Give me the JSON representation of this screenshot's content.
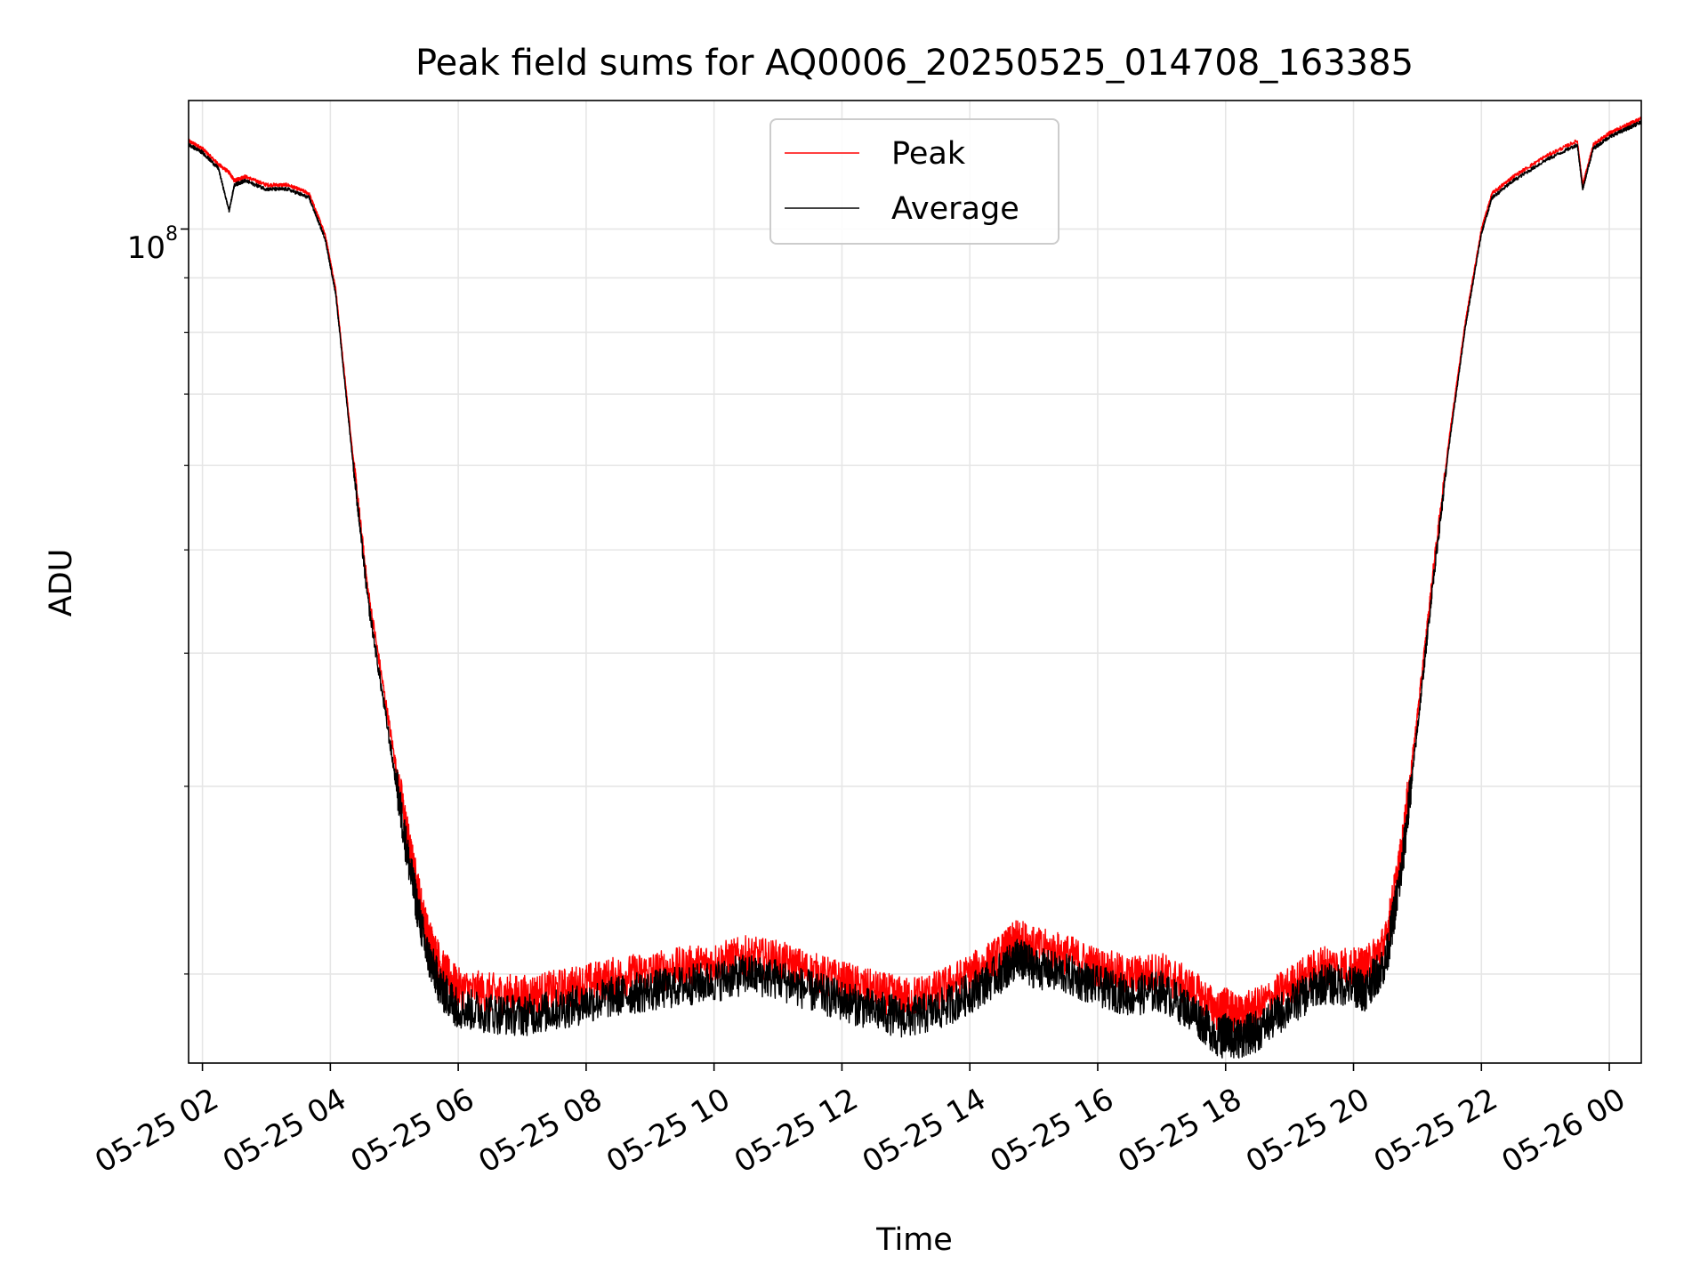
{
  "chart_data": {
    "type": "line",
    "title": "Peak field sums for AQ0006_20250525_014708_163385",
    "xlabel": "Time",
    "ylabel": "ADU",
    "x_ticks": [
      "05-25 02",
      "05-25 04",
      "05-25 06",
      "05-25 08",
      "05-25 10",
      "05-25 12",
      "05-25 14",
      "05-25 16",
      "05-25 18",
      "05-25 20",
      "05-25 22",
      "05-26 00"
    ],
    "y_tick_label_base": "10",
    "y_tick_label_exp": "8",
    "y_scale": "log",
    "xlim": [
      "2025-05-25 01:47",
      "2025-05-26 00:30"
    ],
    "ylim": [
      16500000,
      132000000
    ],
    "grid": true,
    "legend_position": "upper center",
    "colors": {
      "Peak": "#ff0000",
      "Average": "#000000"
    },
    "series": [
      {
        "name": "Peak",
        "x": [
          "2025-05-25 01:47",
          "2025-05-25 02:00",
          "2025-05-25 02:15",
          "2025-05-25 02:25",
          "2025-05-25 02:30",
          "2025-05-25 02:40",
          "2025-05-25 03:00",
          "2025-05-25 03:20",
          "2025-05-25 03:40",
          "2025-05-25 03:55",
          "2025-05-25 04:05",
          "2025-05-25 04:20",
          "2025-05-25 04:35",
          "2025-05-25 05:00",
          "2025-05-25 05:15",
          "2025-05-25 05:30",
          "2025-05-25 05:45",
          "2025-05-25 06:00",
          "2025-05-25 06:30",
          "2025-05-25 07:00",
          "2025-05-25 07:30",
          "2025-05-25 08:00",
          "2025-05-25 08:30",
          "2025-05-25 09:00",
          "2025-05-25 09:30",
          "2025-05-25 10:00",
          "2025-05-25 10:30",
          "2025-05-25 11:00",
          "2025-05-25 11:30",
          "2025-05-25 12:00",
          "2025-05-25 12:30",
          "2025-05-25 13:00",
          "2025-05-25 13:30",
          "2025-05-25 14:00",
          "2025-05-25 14:30",
          "2025-05-25 14:45",
          "2025-05-25 15:00",
          "2025-05-25 15:30",
          "2025-05-25 16:00",
          "2025-05-25 16:30",
          "2025-05-25 17:00",
          "2025-05-25 17:30",
          "2025-05-25 17:55",
          "2025-05-25 18:00",
          "2025-05-25 18:10",
          "2025-05-25 18:30",
          "2025-05-25 19:00",
          "2025-05-25 19:30",
          "2025-05-25 20:00",
          "2025-05-25 20:10",
          "2025-05-25 20:30",
          "2025-05-25 20:45",
          "2025-05-25 21:00",
          "2025-05-25 21:15",
          "2025-05-25 21:30",
          "2025-05-25 21:45",
          "2025-05-25 22:00",
          "2025-05-25 22:10",
          "2025-05-25 22:30",
          "2025-05-25 23:00",
          "2025-05-25 23:30",
          "2025-05-25 23:35",
          "2025-05-25 23:45",
          "2025-05-26 00:00",
          "2025-05-26 00:15",
          "2025-05-26 00:30"
        ],
        "y": [
          121000000,
          119000000,
          115000000,
          113000000,
          111000000,
          112000000,
          110000000,
          110000000,
          108000000,
          99000000,
          88000000,
          63000000,
          46000000,
          32000000,
          26000000,
          22000000,
          20200000,
          19400000,
          19200000,
          19100000,
          19300000,
          19600000,
          19900000,
          20100000,
          20300000,
          20500000,
          20800000,
          20600000,
          20100000,
          19700000,
          19300000,
          19000000,
          19300000,
          20000000,
          20900000,
          21600000,
          21200000,
          20900000,
          20300000,
          19900000,
          20100000,
          19300000,
          18400000,
          18600000,
          18300000,
          18600000,
          19500000,
          20400000,
          20300000,
          20200000,
          21400000,
          26000000,
          35000000,
          48000000,
          64000000,
          82000000,
          100000000,
          108000000,
          112000000,
          117000000,
          121000000,
          110000000,
          120000000,
          123000000,
          125000000,
          127000000
        ]
      },
      {
        "name": "Average",
        "x": [
          "2025-05-25 01:47",
          "2025-05-25 02:00",
          "2025-05-25 02:15",
          "2025-05-25 02:25",
          "2025-05-25 02:30",
          "2025-05-25 02:40",
          "2025-05-25 03:00",
          "2025-05-25 03:20",
          "2025-05-25 03:40",
          "2025-05-25 03:55",
          "2025-05-25 04:05",
          "2025-05-25 04:20",
          "2025-05-25 04:35",
          "2025-05-25 05:00",
          "2025-05-25 05:15",
          "2025-05-25 05:30",
          "2025-05-25 05:45",
          "2025-05-25 06:00",
          "2025-05-25 06:30",
          "2025-05-25 07:00",
          "2025-05-25 07:30",
          "2025-05-25 08:00",
          "2025-05-25 08:30",
          "2025-05-25 09:00",
          "2025-05-25 09:30",
          "2025-05-25 10:00",
          "2025-05-25 10:30",
          "2025-05-25 11:00",
          "2025-05-25 11:30",
          "2025-05-25 12:00",
          "2025-05-25 12:30",
          "2025-05-25 13:00",
          "2025-05-25 13:30",
          "2025-05-25 14:00",
          "2025-05-25 14:30",
          "2025-05-25 14:45",
          "2025-05-25 15:00",
          "2025-05-25 15:30",
          "2025-05-25 16:00",
          "2025-05-25 16:30",
          "2025-05-25 17:00",
          "2025-05-25 17:30",
          "2025-05-25 17:55",
          "2025-05-25 18:00",
          "2025-05-25 18:10",
          "2025-05-25 18:30",
          "2025-05-25 19:00",
          "2025-05-25 19:30",
          "2025-05-25 20:00",
          "2025-05-25 20:10",
          "2025-05-25 20:30",
          "2025-05-25 20:45",
          "2025-05-25 21:00",
          "2025-05-25 21:15",
          "2025-05-25 21:30",
          "2025-05-25 21:45",
          "2025-05-25 22:00",
          "2025-05-25 22:10",
          "2025-05-25 22:30",
          "2025-05-25 23:00",
          "2025-05-25 23:30",
          "2025-05-25 23:35",
          "2025-05-25 23:45",
          "2025-05-26 00:00",
          "2025-05-26 00:15",
          "2025-05-26 00:30"
        ],
        "y": [
          120000000,
          118000000,
          114000000,
          104000000,
          110000000,
          111000000,
          109000000,
          109000000,
          107000000,
          98000000,
          87000000,
          62000000,
          45000000,
          31000000,
          25000000,
          21000000,
          19300000,
          18600000,
          18400000,
          18300000,
          18500000,
          18800000,
          19100000,
          19300000,
          19500000,
          19700000,
          20000000,
          19800000,
          19300000,
          18900000,
          18500000,
          18200000,
          18500000,
          19200000,
          20100000,
          20700000,
          20300000,
          20000000,
          19500000,
          19100000,
          19300000,
          18400000,
          17400000,
          17600000,
          17400000,
          17700000,
          18700000,
          19600000,
          19500000,
          19300000,
          20500000,
          25000000,
          34000000,
          47000000,
          63000000,
          81000000,
          99000000,
          107000000,
          111000000,
          116000000,
          120000000,
          109000000,
          119000000,
          122000000,
          124000000,
          126000000
        ]
      }
    ]
  }
}
